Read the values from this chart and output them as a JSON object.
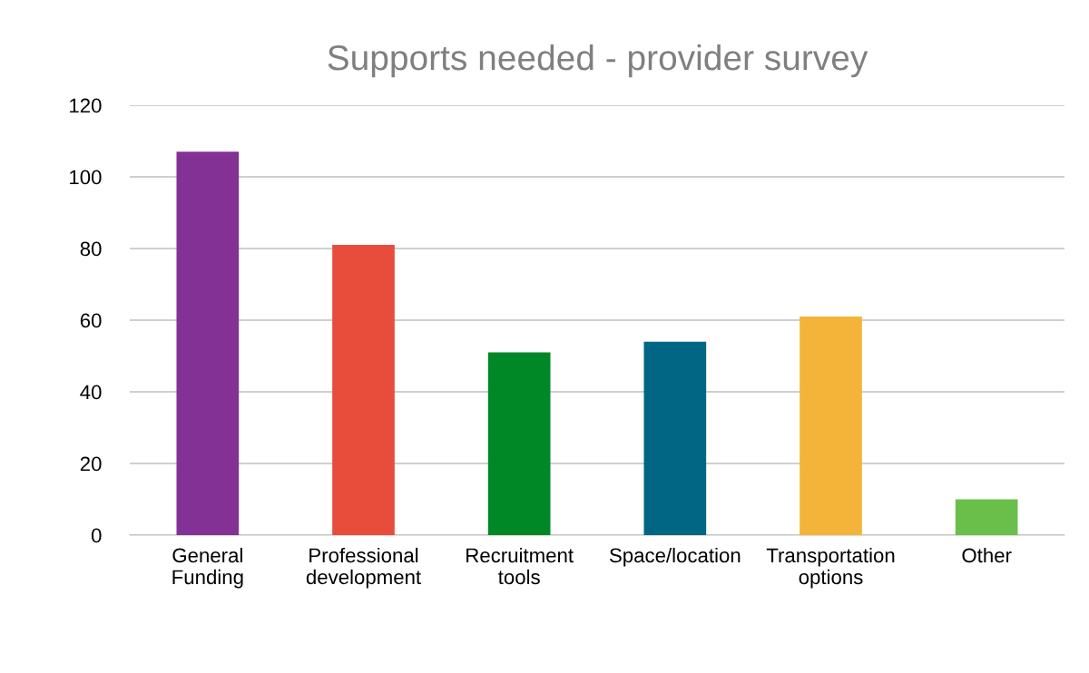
{
  "chart_data": {
    "type": "bar",
    "title": "Supports needed - provider survey",
    "categories": [
      "General\nFunding",
      "Professional\ndevelopment",
      "Recruitment\ntools",
      "Space/location",
      "Transportation\noptions",
      "Other"
    ],
    "values": [
      107,
      81,
      51,
      54,
      61,
      10
    ],
    "colors": [
      "#833194",
      "#e84c3a",
      "#008726",
      "#006684",
      "#f4b43a",
      "#6abf4b"
    ],
    "ylim": [
      0,
      120
    ],
    "yticks": [
      0,
      20,
      40,
      60,
      80,
      100,
      120
    ],
    "grid": "y",
    "legend": false
  }
}
